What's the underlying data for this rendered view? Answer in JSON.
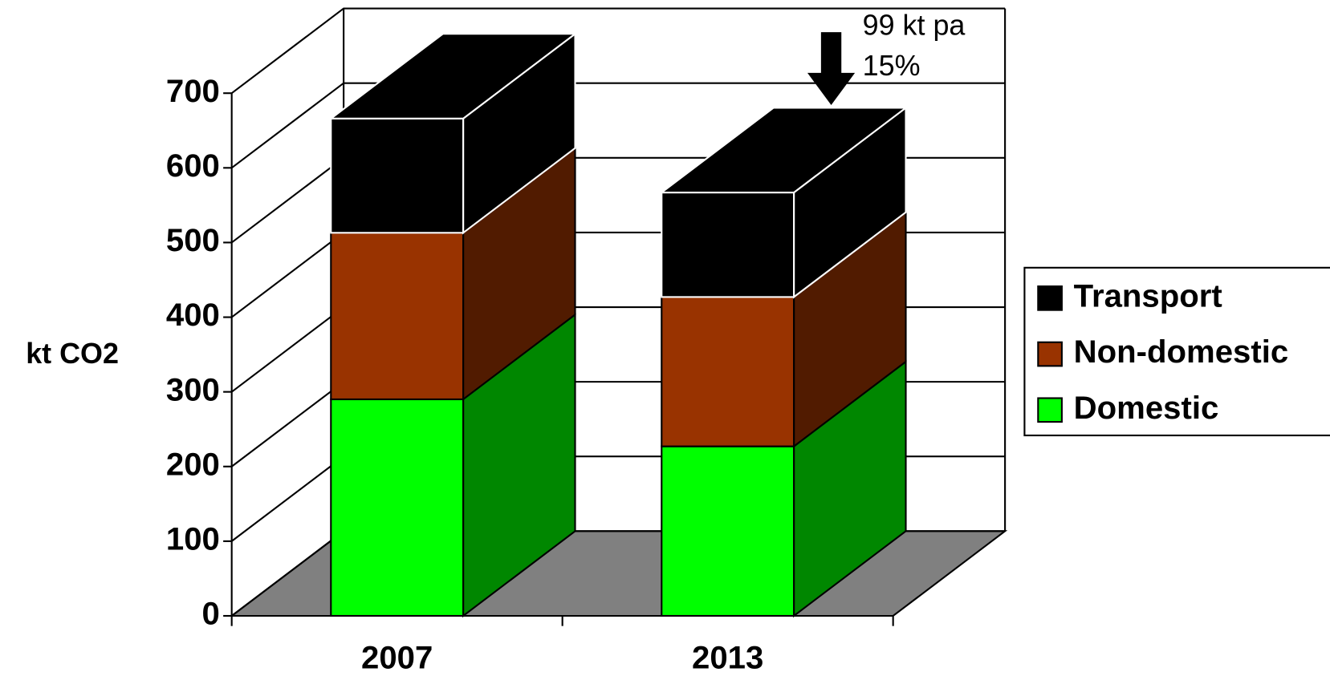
{
  "chart_data": {
    "type": "bar3d_stacked",
    "y_label": "kt CO2",
    "categories": [
      "2007",
      "2013"
    ],
    "series": [
      {
        "name": "Domestic",
        "color": "#00ff00",
        "values": [
          290,
          227
        ]
      },
      {
        "name": "Non-domestic",
        "color": "#993300",
        "values": [
          223,
          200
        ]
      },
      {
        "name": "Transport",
        "color": "#000000",
        "values": [
          153,
          140
        ]
      }
    ],
    "ylim": [
      0,
      700
    ],
    "yticks": [
      0,
      100,
      200,
      300,
      400,
      500,
      600,
      700
    ],
    "grid": true,
    "legend": "right",
    "annotation": [
      "99 kt pa",
      "15%"
    ]
  }
}
